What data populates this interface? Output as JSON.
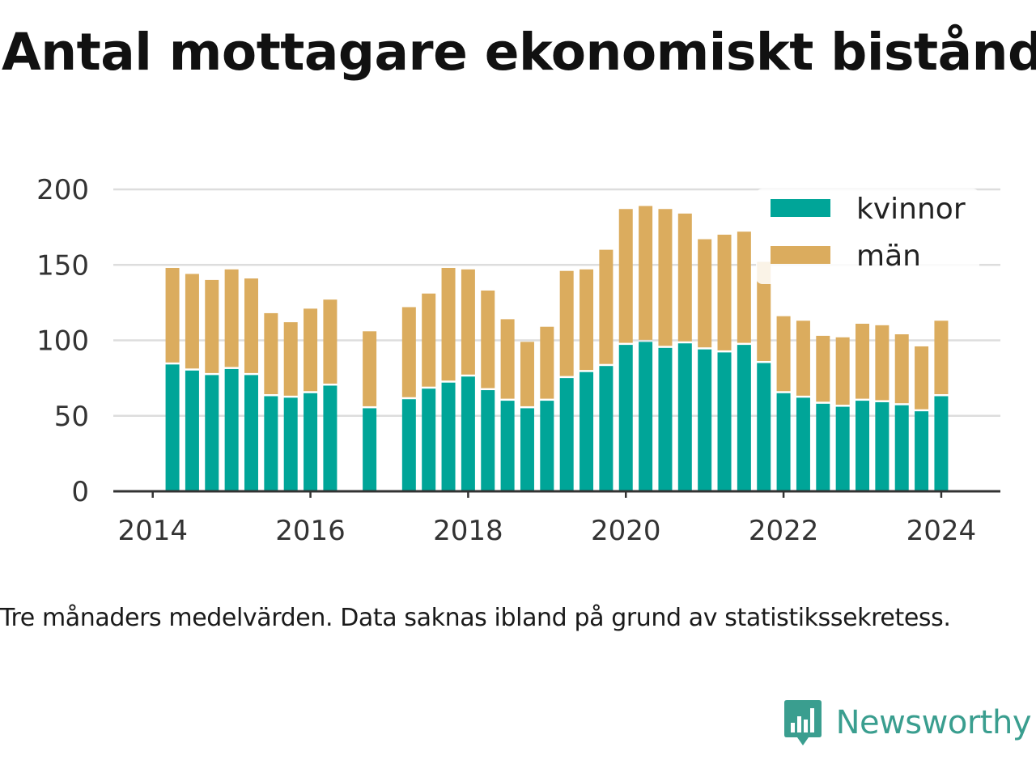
{
  "title": "Antal mottagare ekonomiskt bistånd",
  "note": "Tre månaders medelvärden. Data saknas ibland på grund av statistikssekretess.",
  "brand": {
    "name": "Newsworthy",
    "icon": "newsworthy-logo-icon",
    "color": "#3a9e8f"
  },
  "colors": {
    "kvinnor": "#00a598",
    "man": "#dbac5e",
    "grid": "#dddddd",
    "axis": "#333333"
  },
  "chart_data": {
    "type": "bar",
    "stacked": true,
    "title": "Antal mottagare ekonomiskt bistånd",
    "xlabel": "",
    "ylabel": "",
    "ylim": [
      0,
      200
    ],
    "yticks": [
      0,
      50,
      100,
      150,
      200
    ],
    "xticks": [
      "2014",
      "2016",
      "2018",
      "2020",
      "2022",
      "2024"
    ],
    "xlim": [
      2013.5,
      2024.75
    ],
    "grid": true,
    "legend_position": "top-right",
    "x": [
      2014.25,
      2014.5,
      2014.75,
      2015.0,
      2015.25,
      2015.5,
      2015.75,
      2016.0,
      2016.25,
      2016.5,
      2016.75,
      2017.0,
      2017.25,
      2017.5,
      2017.75,
      2018.0,
      2018.25,
      2018.5,
      2018.75,
      2019.0,
      2019.25,
      2019.5,
      2019.75,
      2020.0,
      2020.25,
      2020.5,
      2020.75,
      2021.0,
      2021.25,
      2021.5,
      2021.75,
      2022.0,
      2022.25,
      2022.5,
      2022.75,
      2023.0,
      2023.25,
      2023.5,
      2023.75,
      2024.0
    ],
    "series": [
      {
        "name": "kvinnor",
        "values": [
          84,
          80,
          77,
          81,
          77,
          63,
          62,
          65,
          70,
          null,
          55,
          null,
          61,
          68,
          72,
          76,
          67,
          60,
          55,
          60,
          75,
          79,
          83,
          97,
          99,
          95,
          98,
          94,
          92,
          97,
          85,
          65,
          62,
          58,
          56,
          60,
          59,
          57,
          53,
          63
        ]
      },
      {
        "name": "män",
        "values": [
          64,
          64,
          63,
          66,
          64,
          55,
          50,
          56,
          57,
          null,
          51,
          null,
          61,
          63,
          76,
          71,
          66,
          54,
          44,
          49,
          71,
          68,
          77,
          90,
          90,
          92,
          86,
          73,
          78,
          75,
          67,
          51,
          51,
          45,
          46,
          51,
          51,
          47,
          43,
          50
        ]
      }
    ]
  }
}
